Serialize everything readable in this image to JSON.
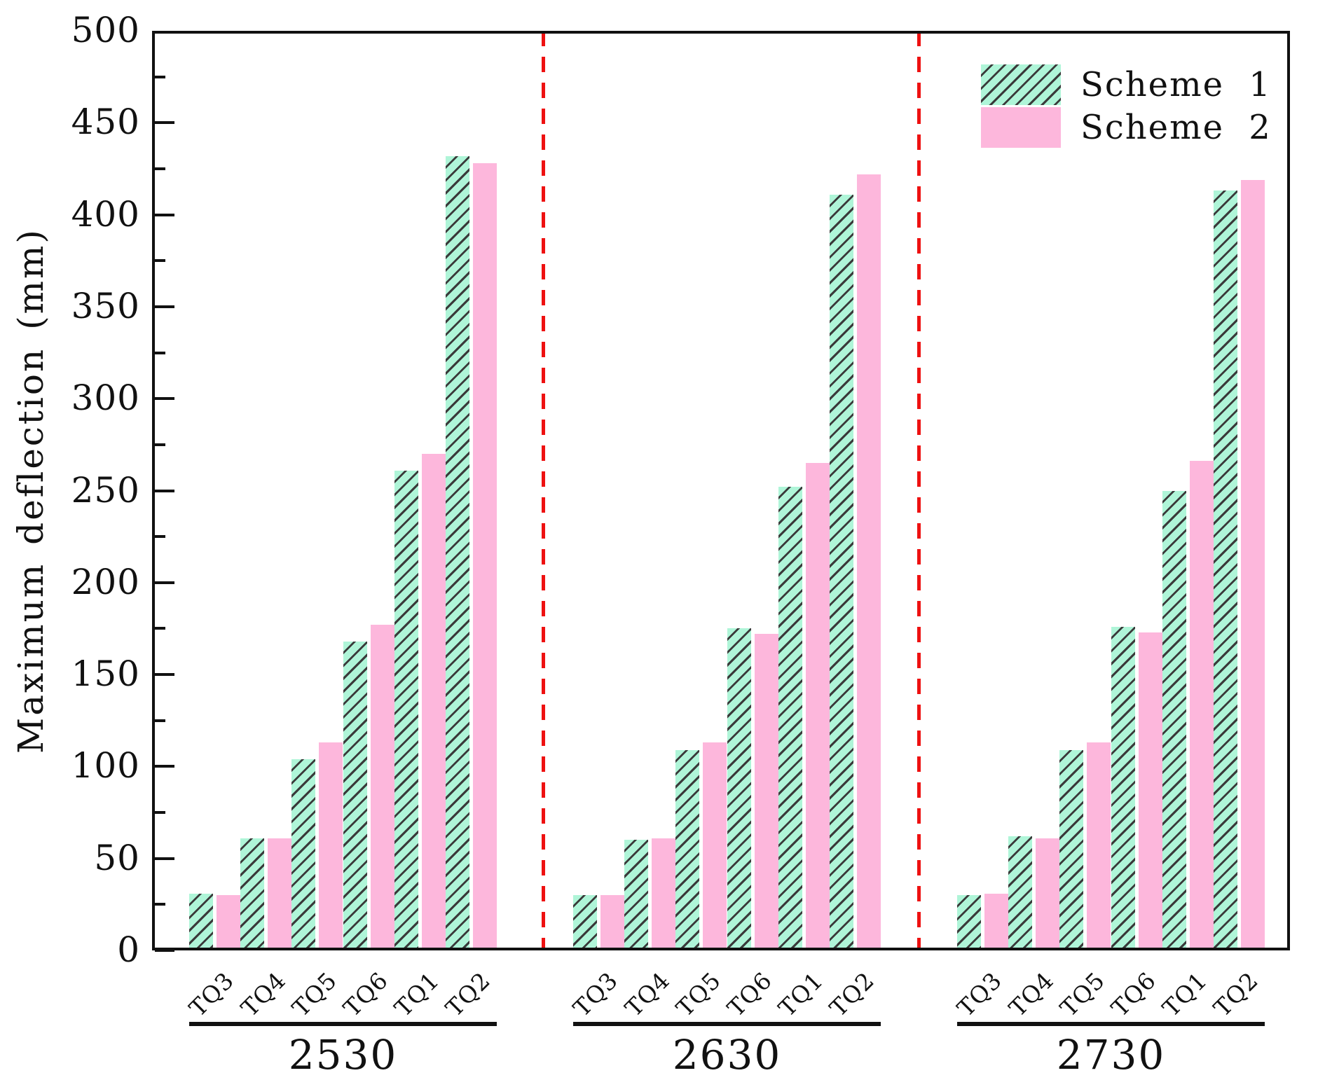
{
  "chart_data": {
    "type": "bar",
    "title": "",
    "ylabel": "Maximum deflection (mm)",
    "xlabel": "",
    "ylim": [
      0,
      500
    ],
    "y_major_step": 50,
    "y_minor_step": 25,
    "y_tick_labels": [
      "0",
      "50",
      "100",
      "150",
      "200",
      "250",
      "300",
      "350",
      "400",
      "450",
      "500"
    ],
    "grid": false,
    "legend_position": "upper right",
    "categories": [
      "TQ3",
      "TQ4",
      "TQ5",
      "TQ6",
      "TQ1",
      "TQ2"
    ],
    "groups": [
      {
        "label": "2530",
        "series": [
          {
            "name": "Scheme 1",
            "values": [
              31,
              61,
              104,
              168,
              261,
              432
            ]
          },
          {
            "name": "Scheme 2",
            "values": [
              30,
              61,
              113,
              177,
              270,
              428
            ]
          }
        ]
      },
      {
        "label": "2630",
        "series": [
          {
            "name": "Scheme 1",
            "values": [
              30,
              60,
              109,
              175,
              252,
              411
            ]
          },
          {
            "name": "Scheme 2",
            "values": [
              30,
              61,
              113,
              172,
              265,
              422
            ]
          }
        ]
      },
      {
        "label": "2730",
        "series": [
          {
            "name": "Scheme 1",
            "values": [
              30,
              62,
              109,
              176,
              250,
              413
            ]
          },
          {
            "name": "Scheme 2",
            "values": [
              31,
              61,
              113,
              173,
              266,
              419
            ]
          }
        ]
      }
    ],
    "legend": {
      "entries": [
        {
          "label": "Scheme 1",
          "color": "#aff5d8",
          "hatch": "diagonal"
        },
        {
          "label": "Scheme 2",
          "color": "#fdb7dc",
          "hatch": "none"
        }
      ]
    },
    "colors": {
      "scheme1_fill": "#aff5d8",
      "scheme2_fill": "#fdb7dc",
      "hatch_line": "#3a3a3a",
      "group_separator": "#ee1111",
      "axis": "#111111"
    }
  }
}
